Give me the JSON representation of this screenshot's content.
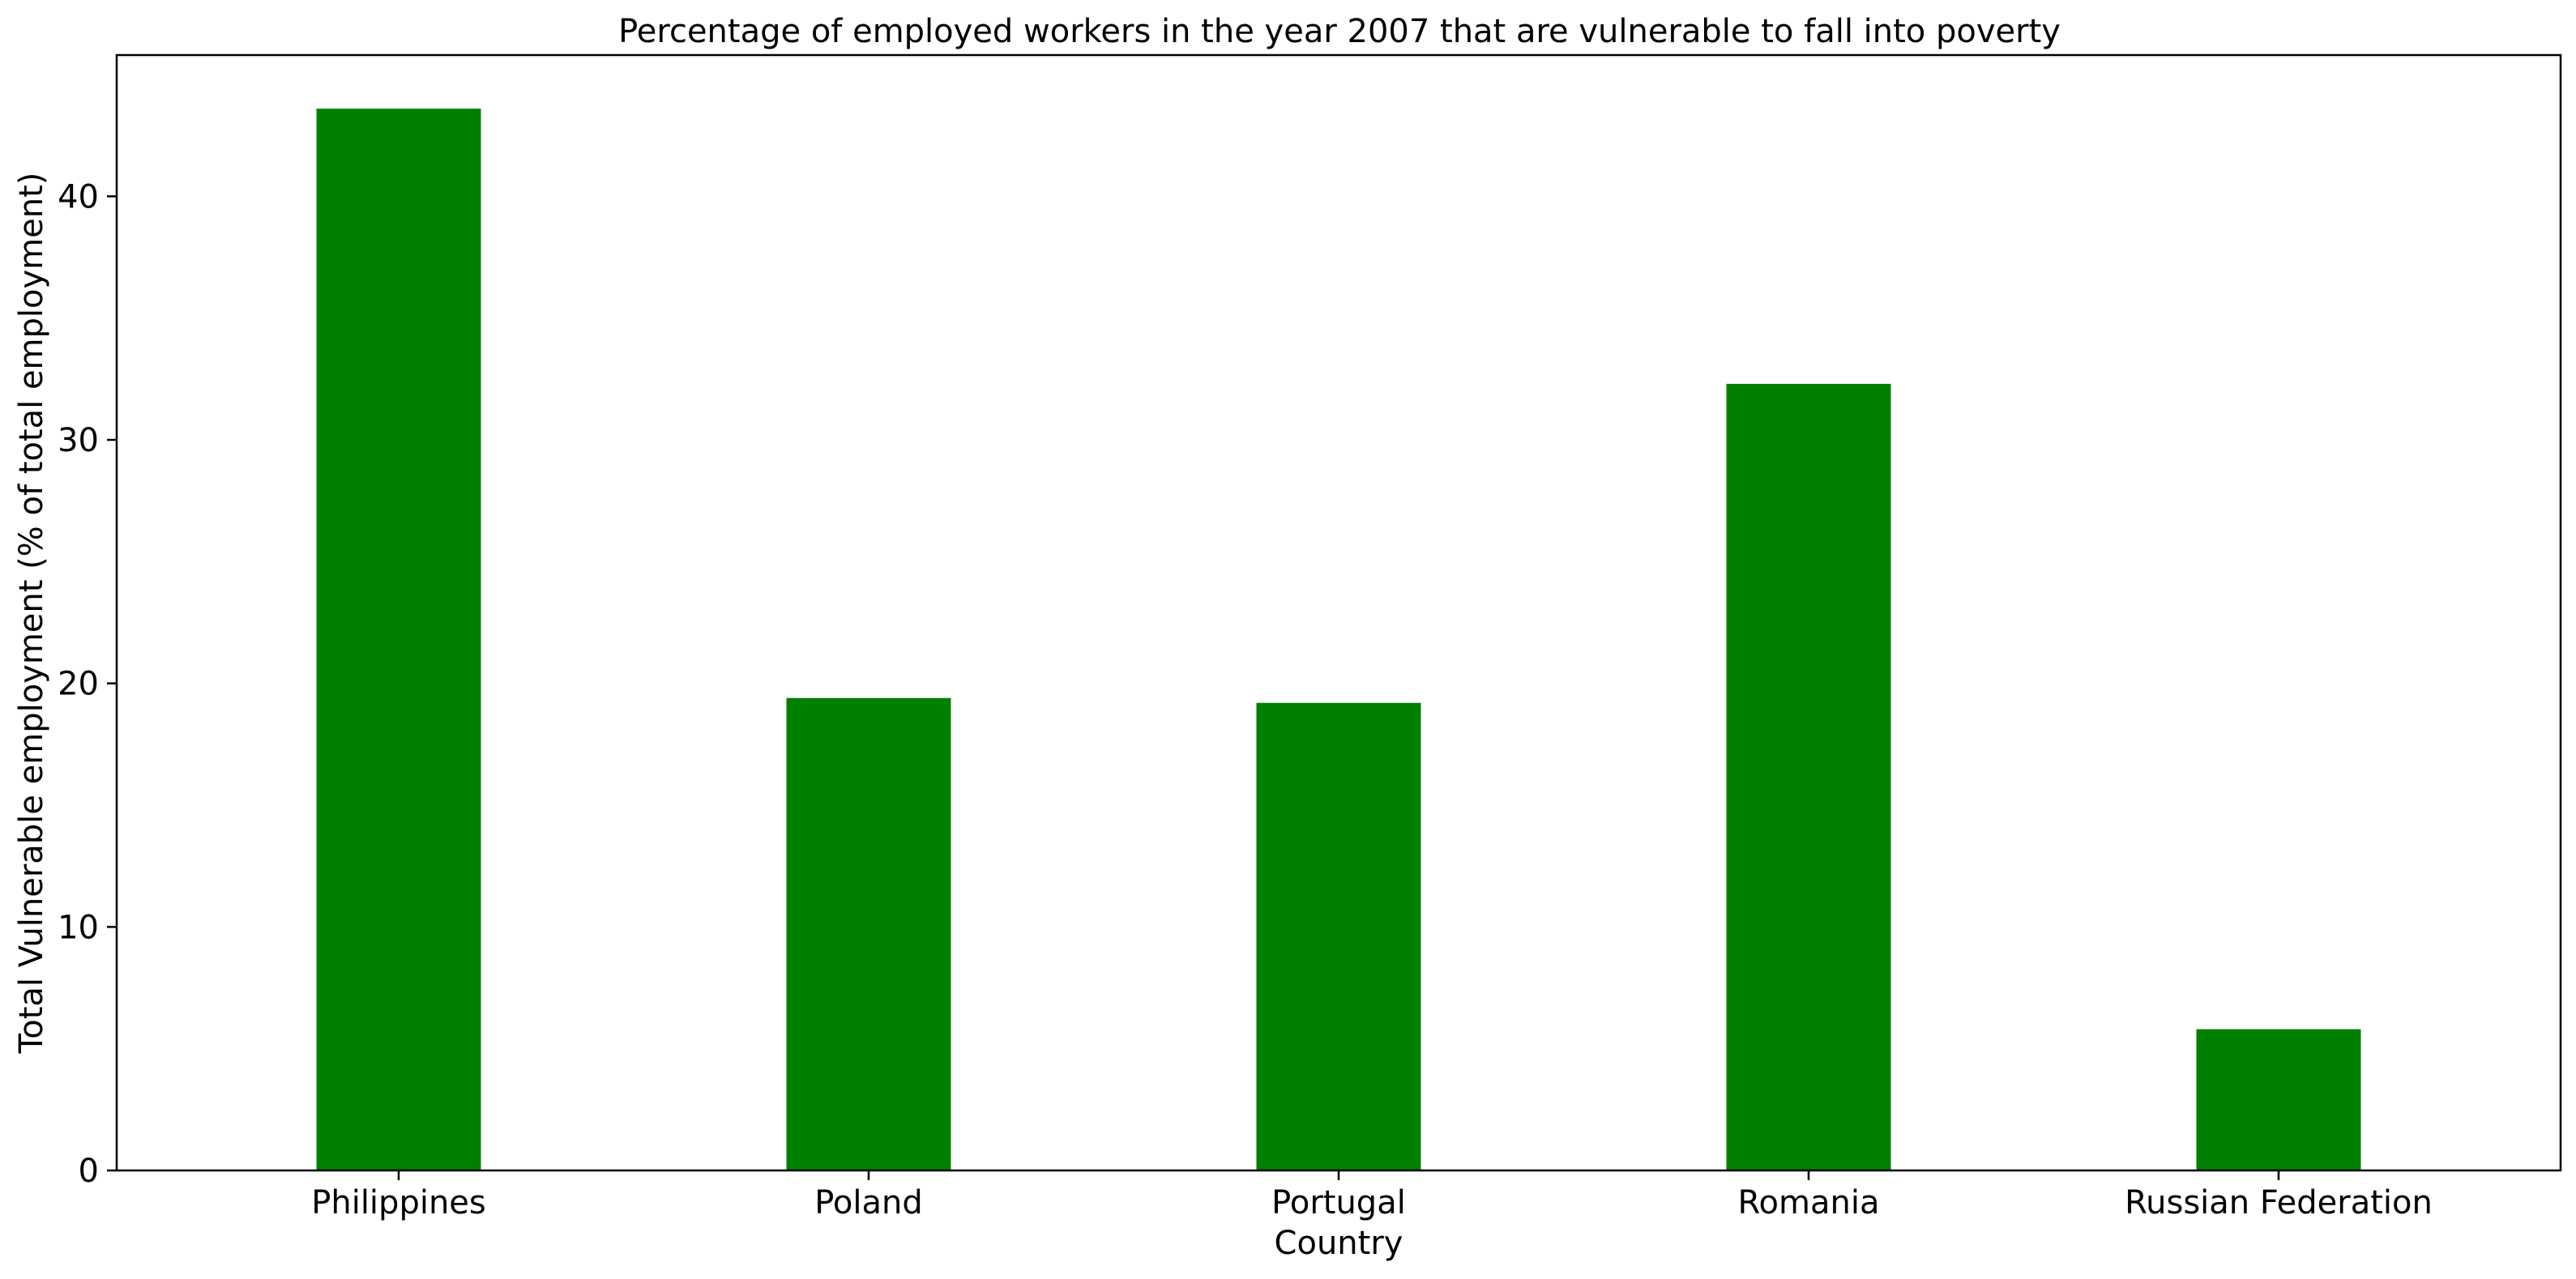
{
  "chart_data": {
    "type": "bar",
    "title": "Percentage of employed workers in the year 2007 that are vulnerable to fall into poverty",
    "xlabel": "Country",
    "ylabel": "Total Vulnerable employment (% of total employment)",
    "categories": [
      "Philippines",
      "Poland",
      "Portugal",
      "Romania",
      "Russian Federation"
    ],
    "values": [
      43.6,
      19.4,
      19.2,
      32.3,
      5.8
    ],
    "ylim": [
      0,
      45.8
    ],
    "yticks": [
      0,
      10,
      20,
      30,
      40
    ],
    "grid": false,
    "bar_color": "#008000"
  }
}
